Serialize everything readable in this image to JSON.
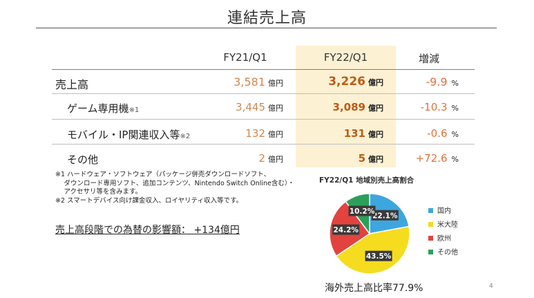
{
  "title": "連結売上高",
  "table": {
    "headers": [
      "FY21/Q1",
      "FY22/Q1",
      "増減"
    ],
    "rows": [
      {
        "label": "売上高",
        "note": "",
        "fy21": "3,581",
        "fy22": "3,226",
        "change": "-9.9"
      },
      {
        "label": "ゲーム専用機",
        "note": "※1",
        "fy21": "3,445",
        "fy22": "3,089",
        "change": "-10.3"
      },
      {
        "label": "モバイル・IP関連収入等",
        "note": "※2",
        "fy21": "132",
        "fy22": "131",
        "change": "-0.6"
      },
      {
        "label": "その他",
        "note": "",
        "fy21": "2",
        "fy22": "5",
        "change": "+72.6"
      }
    ],
    "unit": "億円",
    "pct": "%"
  },
  "notes": [
    "※1 ハードウェア・ソフトウェア（パッケージ併売ダウンロードソフト、",
    "　 ダウンロード専用ソフト、追加コンテンツ、Nintendo Switch Online含む）・",
    "　 アクセサリ等を含みます。",
    "※2 スマートデバイス向け課金収入、ロイヤリティ収入等です。"
  ],
  "fx_impact": "売上高段階での為替の影響額： +134億円",
  "overseas_ratio": "海外売上高比率77.9%",
  "page_number": "4",
  "chart_data": {
    "type": "pie",
    "title": "FY22/Q1 地域別売上高割合",
    "categories": [
      "国内",
      "米大陸",
      "欧州",
      "その他"
    ],
    "values": [
      22.1,
      43.5,
      24.2,
      10.2
    ],
    "labels": [
      "22.1%",
      "43.5%",
      "24.2%",
      "10.2%"
    ],
    "colors": [
      "#3ea6de",
      "#f5dc1e",
      "#e2433f",
      "#2ca05a"
    ],
    "legend_position": "right"
  }
}
